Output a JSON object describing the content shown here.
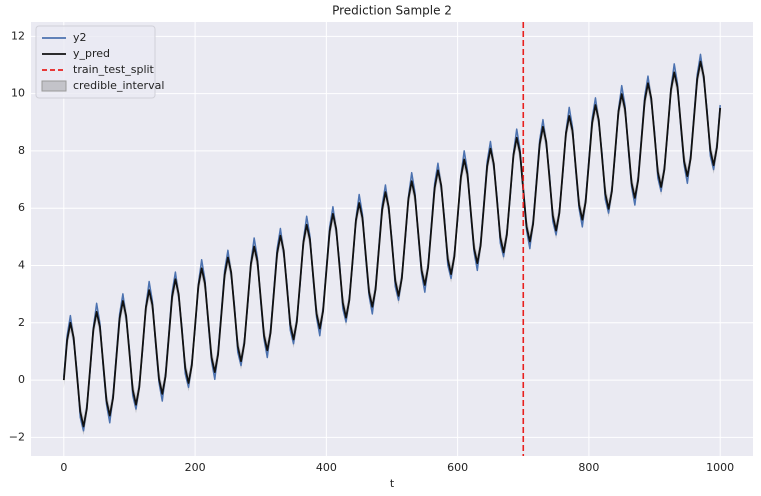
{
  "chart_data": {
    "type": "line",
    "title": "Prediction Sample 2",
    "x_label": "t",
    "xlim": [
      -50,
      1050
    ],
    "ylim": [
      -2.65,
      12.5
    ],
    "xticks": [
      0,
      200,
      400,
      600,
      800,
      1000
    ],
    "yticks": [
      {
        "value": -2,
        "label": "−2"
      },
      0,
      2,
      4,
      6,
      8,
      10,
      12
    ],
    "grid": true,
    "legend": "upper left",
    "x": [
      0,
      5,
      10,
      15,
      20,
      25,
      30,
      35,
      40,
      45,
      50,
      55,
      60,
      65,
      70,
      75,
      80,
      85,
      90,
      95,
      100,
      105,
      110,
      115,
      120,
      125,
      130,
      135,
      140,
      145,
      150,
      155,
      160,
      165,
      170,
      175,
      180,
      185,
      190,
      195,
      200,
      205,
      210,
      215,
      220,
      225,
      230,
      235,
      240,
      245,
      250,
      255,
      260,
      265,
      270,
      275,
      280,
      285,
      290,
      295,
      300,
      305,
      310,
      315,
      320,
      325,
      330,
      335,
      340,
      345,
      350,
      355,
      360,
      365,
      370,
      375,
      380,
      385,
      390,
      395,
      400,
      405,
      410,
      415,
      420,
      425,
      430,
      435,
      440,
      445,
      450,
      455,
      460,
      465,
      470,
      475,
      480,
      485,
      490,
      495,
      500,
      505,
      510,
      515,
      520,
      525,
      530,
      535,
      540,
      545,
      550,
      555,
      560,
      565,
      570,
      575,
      580,
      585,
      590,
      595,
      600,
      605,
      610,
      615,
      620,
      625,
      630,
      635,
      640,
      645,
      650,
      655,
      660,
      665,
      670,
      675,
      680,
      685,
      690,
      695,
      700,
      705,
      710,
      715,
      720,
      725,
      730,
      735,
      740,
      745,
      750,
      755,
      760,
      765,
      770,
      775,
      780,
      785,
      790,
      795,
      800,
      805,
      810,
      815,
      820,
      825,
      830,
      835,
      840,
      845,
      850,
      855,
      860,
      865,
      870,
      875,
      880,
      885,
      890,
      895,
      900,
      905,
      910,
      915,
      920,
      925,
      930,
      935,
      940,
      945,
      950,
      955,
      960,
      965,
      970,
      975,
      980,
      985,
      990,
      995,
      1000
    ],
    "series": [
      {
        "name": "y2",
        "color": "#4c72b0",
        "values": [
          0.1,
          1.54,
          2.25,
          1.38,
          0.31,
          -1.3,
          -1.77,
          -0.93,
          0.3,
          1.82,
          2.68,
          1.98,
          0.47,
          -0.84,
          -1.49,
          -0.53,
          0.86,
          2.3,
          3.01,
          2.14,
          1.07,
          -0.54,
          -1.01,
          -0.17,
          1.06,
          2.58,
          3.44,
          2.74,
          1.23,
          -0.08,
          -0.73,
          0.23,
          1.62,
          3.06,
          3.77,
          2.9,
          1.83,
          0.22,
          -0.25,
          0.59,
          1.82,
          3.34,
          4.2,
          3.5,
          1.99,
          0.68,
          0.03,
          0.99,
          2.38,
          3.82,
          4.53,
          3.66,
          2.59,
          0.98,
          0.51,
          1.35,
          2.58,
          4.1,
          4.96,
          4.26,
          2.75,
          1.44,
          0.79,
          1.75,
          3.14,
          4.58,
          5.29,
          4.42,
          3.35,
          1.74,
          1.27,
          2.11,
          3.34,
          4.86,
          5.72,
          5.02,
          3.51,
          2.2,
          1.55,
          2.51,
          3.9,
          5.34,
          6.05,
          5.18,
          4.11,
          2.5,
          2.03,
          2.87,
          4.1,
          5.62,
          6.48,
          5.78,
          4.27,
          2.96,
          2.31,
          3.27,
          4.66,
          6.1,
          6.81,
          5.94,
          4.87,
          3.26,
          2.79,
          3.63,
          4.86,
          6.38,
          7.24,
          6.54,
          5.03,
          3.72,
          3.07,
          4.03,
          5.42,
          6.86,
          7.57,
          6.7,
          5.63,
          4.02,
          3.55,
          4.39,
          5.62,
          7.14,
          8,
          7.3,
          5.79,
          4.48,
          3.83,
          4.79,
          6.18,
          7.62,
          8.33,
          7.46,
          6.39,
          4.78,
          4.31,
          5.15,
          6.38,
          7.9,
          8.76,
          8.06,
          6.55,
          5.24,
          4.59,
          5.55,
          6.94,
          8.38,
          9.09,
          8.22,
          7.15,
          5.54,
          5.07,
          5.91,
          7.14,
          8.66,
          9.52,
          8.82,
          7.31,
          6,
          5.35,
          6.31,
          7.7,
          9.14,
          9.85,
          8.98,
          7.91,
          6.3,
          5.83,
          6.67,
          7.9,
          9.42,
          10.28,
          9.58,
          8.07,
          6.76,
          6.11,
          7.07,
          8.46,
          9.9,
          10.61,
          9.74,
          8.67,
          7.06,
          6.59,
          7.43,
          8.66,
          10.18,
          11.04,
          10.34,
          8.83,
          7.52,
          6.87,
          7.83,
          9.22,
          10.66,
          11.37,
          10.5,
          9.43,
          7.82,
          7.35,
          8.19,
          9.6
        ]
      },
      {
        "name": "y_pred",
        "color": "#111111",
        "values": [
          0,
          1.39,
          2,
          1.48,
          0.19,
          -1.1,
          -1.62,
          -1.01,
          0.38,
          1.77,
          2.38,
          1.86,
          0.57,
          -0.72,
          -1.24,
          -0.63,
          0.76,
          2.15,
          2.76,
          2.24,
          0.95,
          -0.34,
          -0.86,
          -0.25,
          1.14,
          2.53,
          3.14,
          2.62,
          1.33,
          0.04,
          -0.48,
          0.13,
          1.52,
          2.91,
          3.52,
          3,
          1.71,
          0.42,
          -0.1,
          0.51,
          1.9,
          3.29,
          3.9,
          3.38,
          2.09,
          0.8,
          0.28,
          0.89,
          2.28,
          3.67,
          4.28,
          3.76,
          2.47,
          1.18,
          0.66,
          1.27,
          2.66,
          4.05,
          4.66,
          4.14,
          2.85,
          1.56,
          1.04,
          1.65,
          3.04,
          4.43,
          5.04,
          4.52,
          3.23,
          1.94,
          1.42,
          2.03,
          3.42,
          4.81,
          5.42,
          4.9,
          3.61,
          2.32,
          1.8,
          2.41,
          3.8,
          5.19,
          5.8,
          5.28,
          3.99,
          2.7,
          2.18,
          2.79,
          4.18,
          5.57,
          6.18,
          5.66,
          4.37,
          3.08,
          2.56,
          3.17,
          4.56,
          5.95,
          6.56,
          6.04,
          4.75,
          3.46,
          2.94,
          3.55,
          4.94,
          6.33,
          6.94,
          6.42,
          5.13,
          3.84,
          3.32,
          3.93,
          5.32,
          6.71,
          7.32,
          6.8,
          5.51,
          4.22,
          3.7,
          4.31,
          5.7,
          7.09,
          7.7,
          7.18,
          5.89,
          4.6,
          4.08,
          4.69,
          6.08,
          7.47,
          8.08,
          7.56,
          6.27,
          4.98,
          4.46,
          5.07,
          6.46,
          7.85,
          8.46,
          7.94,
          6.65,
          5.36,
          4.84,
          5.45,
          6.84,
          8.23,
          8.84,
          8.32,
          7.03,
          5.74,
          5.22,
          5.83,
          7.22,
          8.61,
          9.22,
          8.7,
          7.41,
          6.12,
          5.6,
          6.21,
          7.6,
          8.99,
          9.6,
          9.08,
          7.79,
          6.5,
          5.98,
          6.59,
          7.98,
          9.37,
          9.98,
          9.46,
          8.17,
          6.88,
          6.36,
          6.97,
          8.36,
          9.75,
          10.36,
          9.84,
          8.55,
          7.26,
          6.74,
          7.35,
          8.74,
          10.13,
          10.74,
          10.22,
          8.93,
          7.64,
          7.12,
          7.73,
          9.12,
          10.51,
          11.12,
          10.6,
          9.31,
          8.02,
          7.5,
          8.11,
          9.5
        ]
      }
    ],
    "interval": {
      "name": "credible_interval",
      "color": "#a8a8ae",
      "lower": [
        -0.3,
        1.09,
        1.7,
        1.18,
        -0.11,
        -1.4,
        -1.92,
        -1.31,
        0.08,
        1.47,
        2.08,
        1.56,
        0.27,
        -1.02,
        -1.54,
        -0.93,
        0.46,
        1.85,
        2.46,
        1.94,
        0.65,
        -0.64,
        -1.16,
        -0.55,
        0.84,
        2.23,
        2.84,
        2.32,
        1.03,
        -0.26,
        -0.78,
        -0.17,
        1.22,
        2.61,
        3.22,
        2.7,
        1.41,
        0.12,
        -0.4,
        0.21,
        1.6,
        2.99,
        3.6,
        3.08,
        1.79,
        0.5,
        -0.02,
        0.59,
        1.98,
        3.37,
        3.98,
        3.46,
        2.17,
        0.88,
        0.36,
        0.97,
        2.36,
        3.75,
        4.36,
        3.84,
        2.55,
        1.26,
        0.74,
        1.35,
        2.74,
        4.13,
        4.74,
        4.22,
        2.93,
        1.64,
        1.12,
        1.73,
        3.12,
        4.51,
        5.12,
        4.6,
        3.31,
        2.02,
        1.5,
        2.11,
        3.5,
        4.89,
        5.5,
        4.98,
        3.69,
        2.4,
        1.88,
        2.49,
        3.88,
        5.27,
        5.88,
        5.36,
        4.07,
        2.78,
        2.26,
        2.87,
        4.26,
        5.65,
        6.26,
        5.74,
        4.45,
        3.16,
        2.64,
        3.25,
        4.64,
        6.03,
        6.64,
        6.12,
        4.83,
        3.54,
        3.02,
        3.63,
        5.02,
        6.41,
        7.02,
        6.5,
        5.21,
        3.92,
        3.4,
        4.01,
        5.4,
        6.79,
        7.4,
        6.88,
        5.59,
        4.3,
        3.78,
        4.39,
        5.78,
        7.17,
        7.78,
        7.26,
        5.97,
        4.68,
        4.16,
        4.77,
        6.16,
        7.55,
        8.16,
        7.64,
        6.35,
        5.06,
        4.54,
        5.15,
        6.54,
        7.93,
        8.54,
        8.02,
        6.73,
        5.44,
        4.92,
        5.53,
        6.92,
        8.31,
        8.92,
        8.4,
        7.11,
        5.82,
        5.3,
        5.91,
        7.3,
        8.69,
        9.3,
        8.78,
        7.49,
        6.2,
        5.68,
        6.29,
        7.68,
        9.07,
        9.68,
        9.16,
        7.87,
        6.58,
        6.06,
        6.67,
        8.06,
        9.45,
        10.06,
        9.54,
        8.25,
        6.96,
        6.44,
        7.05,
        8.44,
        9.83,
        10.44,
        9.92,
        8.63,
        7.34,
        6.82,
        7.43,
        8.82,
        10.21,
        10.82,
        10.3,
        9.01,
        7.72,
        7.2,
        7.81,
        9.2
      ],
      "upper": [
        0.3,
        1.69,
        2.3,
        1.78,
        0.49,
        -0.8,
        -1.32,
        -0.71,
        0.68,
        2.07,
        2.68,
        2.16,
        0.87,
        -0.42,
        -0.94,
        -0.33,
        1.06,
        2.45,
        3.06,
        2.54,
        1.25,
        -0.04,
        -0.56,
        0.05,
        1.44,
        2.83,
        3.44,
        2.92,
        1.63,
        0.34,
        -0.18,
        0.43,
        1.82,
        3.21,
        3.82,
        3.3,
        2.01,
        0.72,
        0.2,
        0.81,
        2.2,
        3.59,
        4.2,
        3.68,
        2.39,
        1.1,
        0.58,
        1.19,
        2.58,
        3.97,
        4.58,
        4.06,
        2.77,
        1.48,
        0.96,
        1.57,
        2.96,
        4.35,
        4.96,
        4.44,
        3.15,
        1.86,
        1.34,
        1.95,
        3.34,
        4.73,
        5.34,
        4.82,
        3.53,
        2.24,
        1.72,
        2.33,
        3.72,
        5.11,
        5.72,
        5.2,
        3.91,
        2.62,
        2.1,
        2.71,
        4.1,
        5.49,
        6.1,
        5.58,
        4.29,
        3,
        2.48,
        3.09,
        4.48,
        5.87,
        6.48,
        5.96,
        4.67,
        3.38,
        2.86,
        3.47,
        4.86,
        6.25,
        6.86,
        6.34,
        5.05,
        3.76,
        3.24,
        3.85,
        5.24,
        6.63,
        7.24,
        6.72,
        5.43,
        4.14,
        3.62,
        4.23,
        5.62,
        7.01,
        7.62,
        7.1,
        5.81,
        4.52,
        4,
        4.61,
        6,
        7.39,
        8,
        7.48,
        6.19,
        4.9,
        4.38,
        4.99,
        6.38,
        7.77,
        8.38,
        7.86,
        6.57,
        5.28,
        4.76,
        5.37,
        6.76,
        8.15,
        8.76,
        8.24,
        6.95,
        5.66,
        5.14,
        5.75,
        7.14,
        8.53,
        9.14,
        8.62,
        7.33,
        6.04,
        5.52,
        6.13,
        7.52,
        8.91,
        9.52,
        9,
        7.71,
        6.42,
        5.9,
        6.51,
        7.9,
        9.29,
        9.9,
        9.38,
        8.09,
        6.8,
        6.28,
        6.89,
        8.28,
        9.67,
        10.28,
        9.76,
        8.47,
        7.18,
        6.66,
        7.27,
        8.66,
        10.05,
        10.66,
        10.14,
        8.85,
        7.56,
        7.04,
        7.65,
        9.04,
        10.43,
        11.04,
        10.52,
        9.23,
        7.94,
        7.42,
        8.03,
        9.42,
        10.81,
        11.42,
        10.9,
        9.61,
        8.32,
        7.8,
        8.41,
        9.8
      ]
    },
    "vline": {
      "name": "train_test_split",
      "x": 700,
      "color": "#e8201e"
    }
  }
}
